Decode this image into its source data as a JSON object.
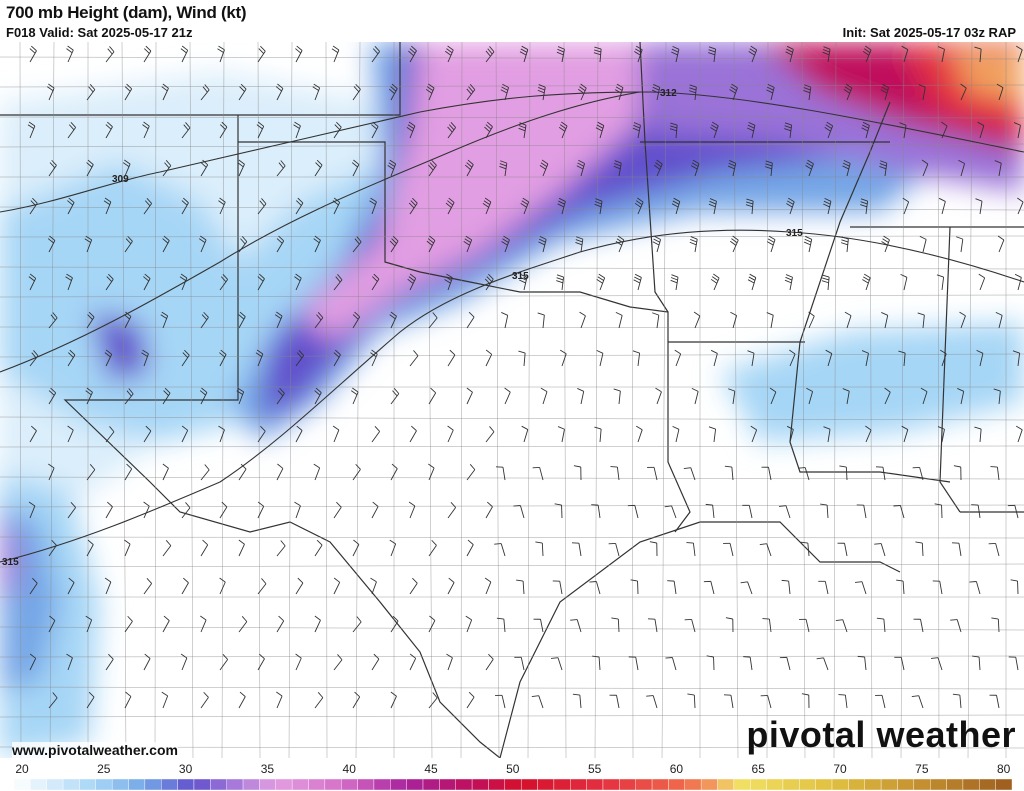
{
  "header": {
    "title": "700 mb Height (dam), Wind (kt)",
    "valid": "F018 Valid: Sat 2025-05-17 21z",
    "init": "Init: Sat 2025-05-17 03z RAP"
  },
  "map": {
    "contour_labels": [
      "309",
      "312",
      "315",
      "315",
      "315"
    ],
    "website": "www.pivotalweather.com",
    "logo": "pivotal weather"
  },
  "colorbar": {
    "units": "kt",
    "range": [
      20,
      81
    ],
    "tick_labels": [
      "20",
      "25",
      "30",
      "35",
      "40",
      "45",
      "50",
      "55",
      "60",
      "65",
      "70",
      "75",
      "80"
    ],
    "color_stops": [
      [
        20,
        "#ffffff"
      ],
      [
        22,
        "#dbeefb"
      ],
      [
        25,
        "#a6d6f6"
      ],
      [
        28,
        "#74a6e6"
      ],
      [
        31,
        "#6250cc"
      ],
      [
        33,
        "#9a72d8"
      ],
      [
        36,
        "#e29ee2"
      ],
      [
        40,
        "#d670c8"
      ],
      [
        44,
        "#a8229c"
      ],
      [
        48,
        "#c0105c"
      ],
      [
        51,
        "#d4102c"
      ],
      [
        56,
        "#e43040"
      ],
      [
        61,
        "#f06a4c"
      ],
      [
        63,
        "#f2a460"
      ],
      [
        64,
        "#f2e266"
      ],
      [
        70,
        "#e0c040"
      ],
      [
        75,
        "#c69432"
      ],
      [
        81,
        "#9c5c1e"
      ]
    ]
  }
}
